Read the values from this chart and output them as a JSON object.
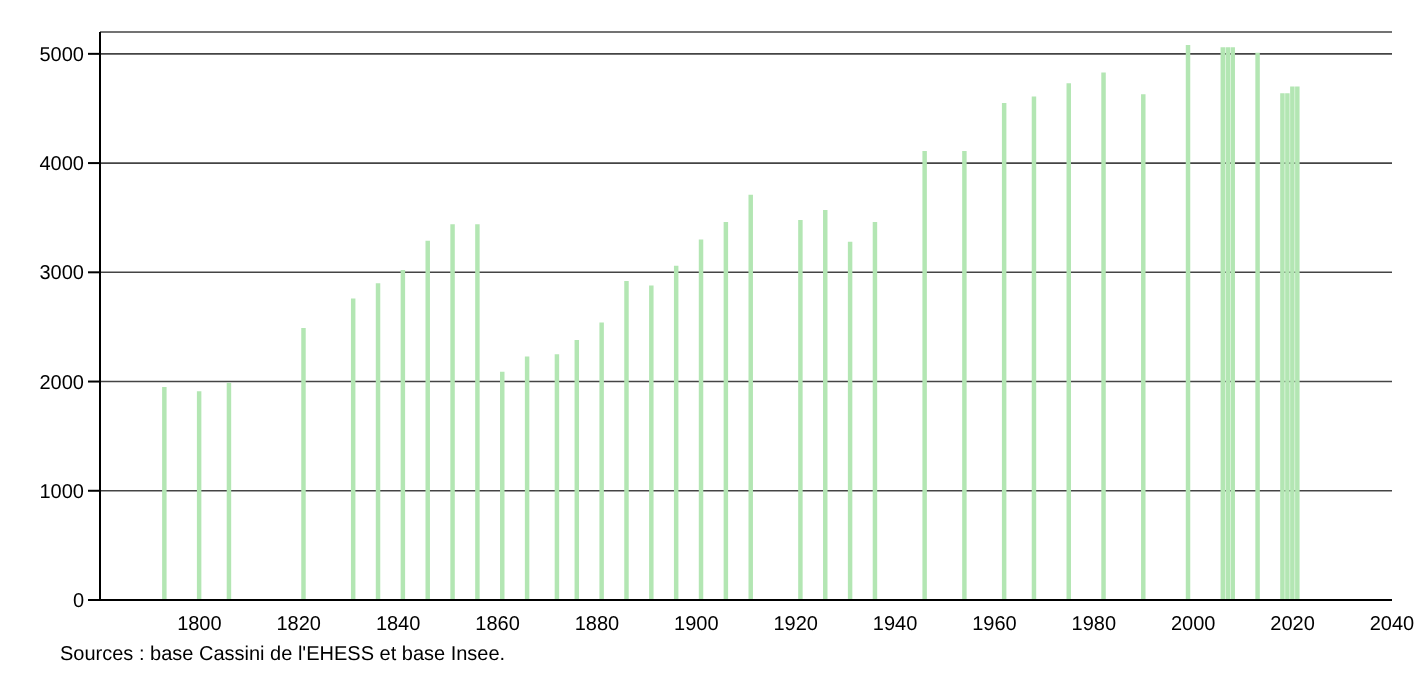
{
  "chart_data": {
    "type": "bar",
    "x": [
      1793,
      1800,
      1806,
      1821,
      1831,
      1836,
      1841,
      1846,
      1851,
      1856,
      1861,
      1866,
      1872,
      1876,
      1881,
      1886,
      1891,
      1896,
      1901,
      1906,
      1911,
      1921,
      1926,
      1931,
      1936,
      1946,
      1954,
      1962,
      1968,
      1975,
      1982,
      1990,
      1999,
      2006,
      2007,
      2008,
      2013,
      2018,
      2019,
      2020,
      2021
    ],
    "values": [
      1950,
      1910,
      1990,
      2490,
      2760,
      2900,
      3020,
      3290,
      3440,
      3440,
      2090,
      2230,
      2250,
      2380,
      2540,
      2920,
      2880,
      3060,
      3300,
      3460,
      3710,
      3480,
      3570,
      3280,
      3460,
      4110,
      4110,
      4550,
      4610,
      4730,
      4830,
      4630,
      5080,
      5060,
      5060,
      5060,
      5010,
      4640,
      4640,
      4700,
      4700
    ],
    "color": "#b3e6b3",
    "xlim": [
      1780,
      2040
    ],
    "xticks": [
      1800,
      1820,
      1840,
      1860,
      1880,
      1900,
      1920,
      1940,
      1960,
      1980,
      2000,
      2020,
      2040
    ],
    "ylim": [
      0,
      5200
    ],
    "yticks": [
      0,
      1000,
      2000,
      3000,
      4000,
      5000
    ],
    "grid": "y",
    "annotations": [
      "Sources : base Cassini de l'EHESS et base Insee."
    ]
  }
}
